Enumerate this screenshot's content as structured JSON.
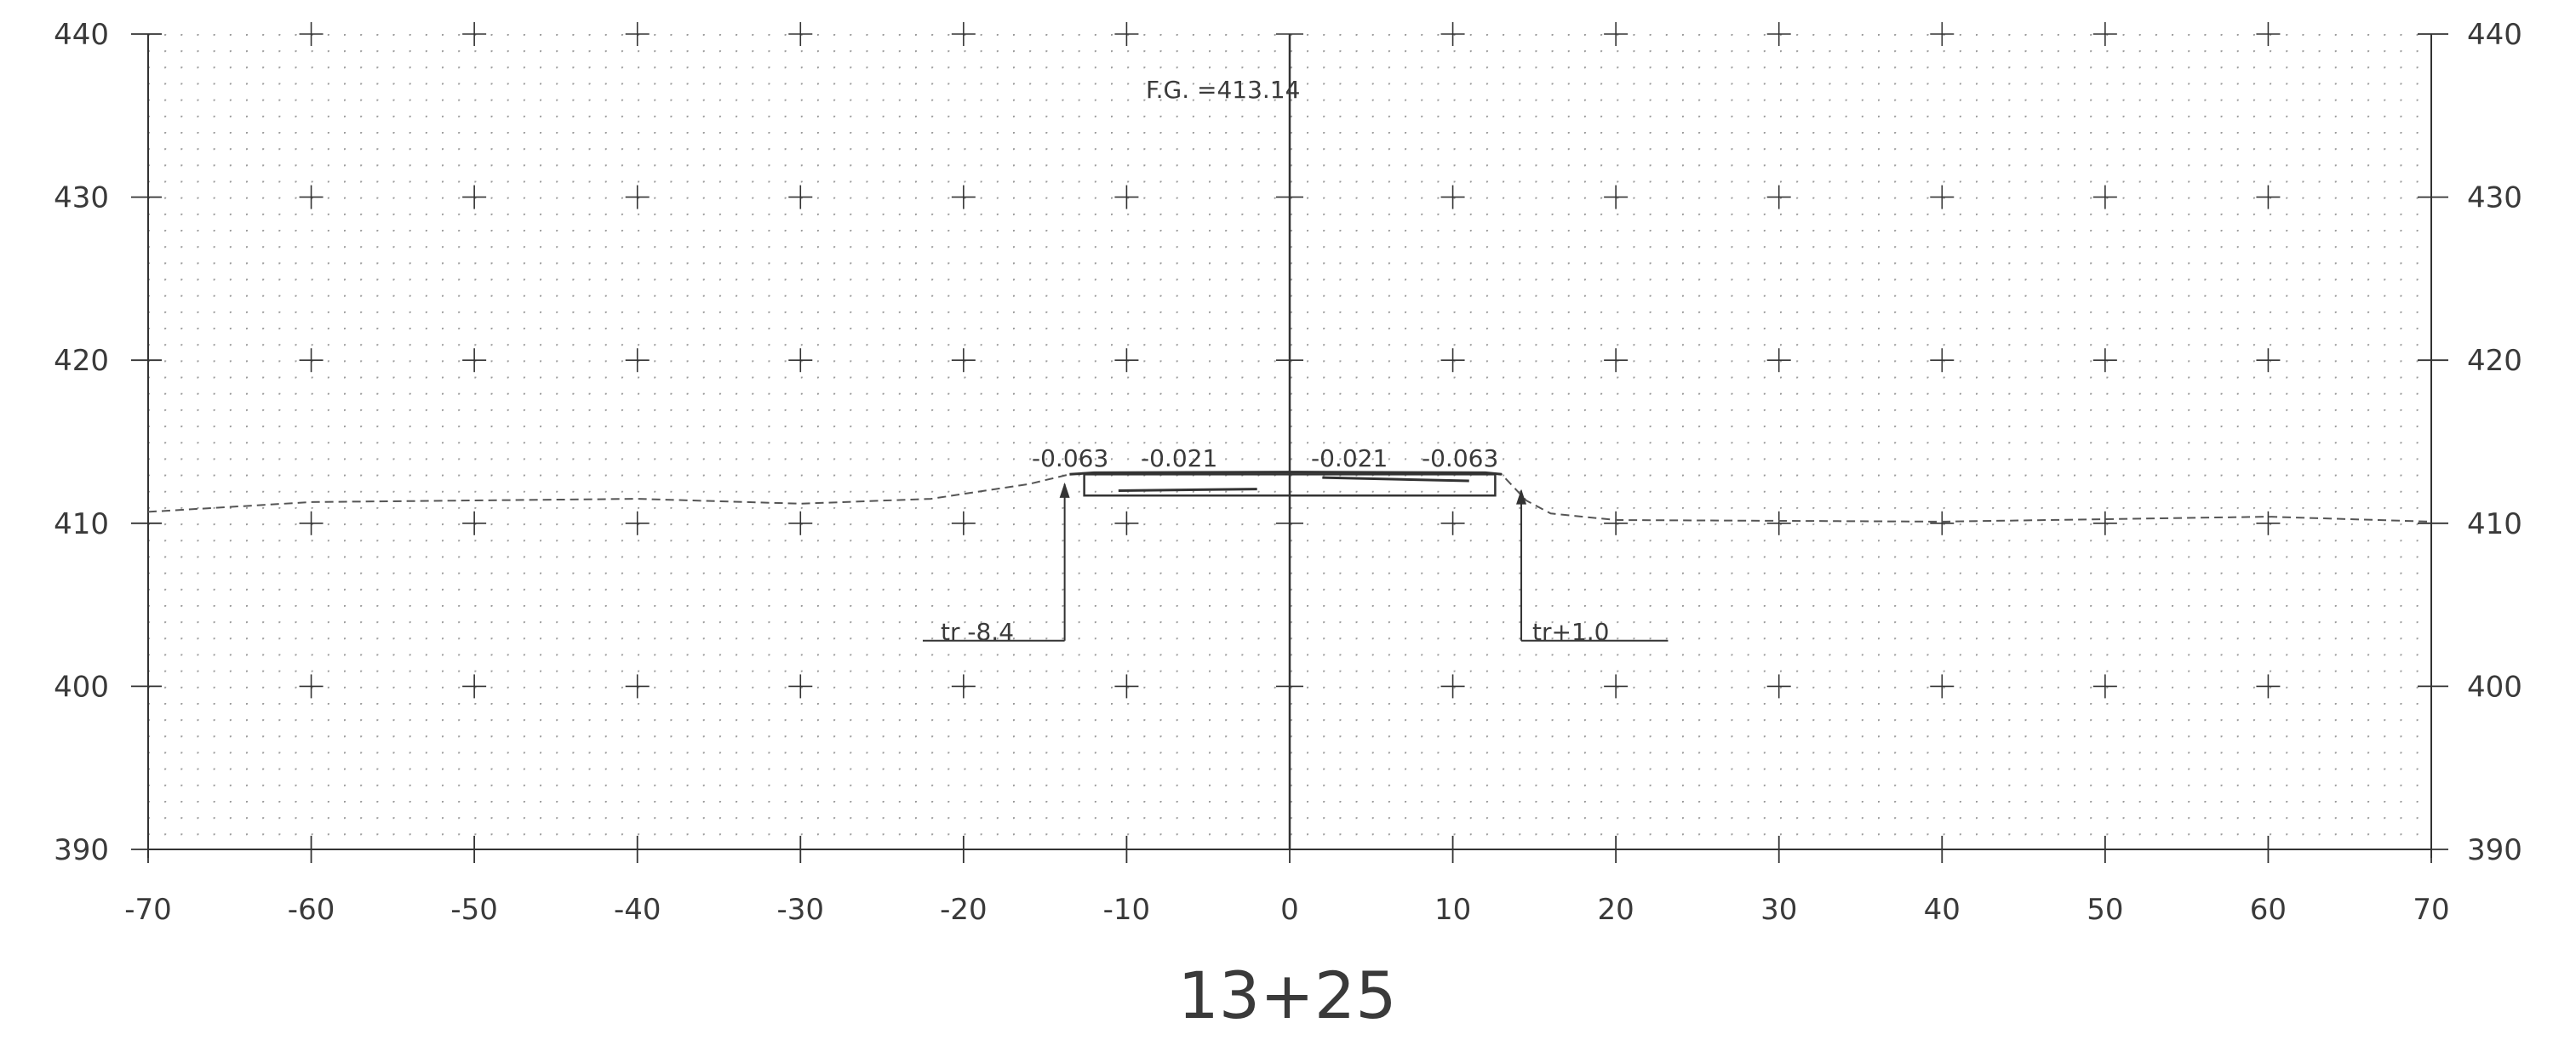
{
  "drawing": {
    "station_label": "13+25",
    "finish_grade_label": "F.G. =413.14",
    "slope_labels": [
      "-0.063",
      "-0.021",
      "-0.021",
      "-0.063"
    ],
    "left_break_label": "tr -8.4",
    "right_break_label": "tr+1.0",
    "x_ticks": [
      "-70",
      "-60",
      "-50",
      "-40",
      "-30",
      "-20",
      "-10",
      "0",
      "10",
      "20",
      "30",
      "40",
      "50",
      "60",
      "70"
    ],
    "y_ticks": [
      "440",
      "430",
      "420",
      "410",
      "400",
      "390"
    ],
    "x_range": [
      -70,
      70
    ],
    "y_range": [
      390,
      440
    ],
    "colors": {
      "line": "#333333",
      "grid_dot": "#9a9a9a",
      "background": "#ffffff"
    }
  },
  "chart_data": {
    "type": "line",
    "title": "13+25",
    "xlabel": "",
    "ylabel": "",
    "xlim": [
      -70,
      70
    ],
    "ylim": [
      390,
      440
    ],
    "grid": "dotted",
    "series": [
      {
        "values_x": [
          -70,
          -60,
          -40,
          -30,
          -22,
          -16,
          -13.5,
          -12,
          0,
          12,
          13,
          14.5,
          16,
          20,
          40,
          60,
          70
        ],
        "values_y": [
          410.7,
          411.3,
          411.5,
          411.2,
          411.5,
          412.4,
          413.0,
          413.1,
          413.14,
          413.1,
          413.0,
          411.4,
          410.6,
          410.2,
          410.1,
          410.4,
          410.1
        ]
      }
    ]
  }
}
